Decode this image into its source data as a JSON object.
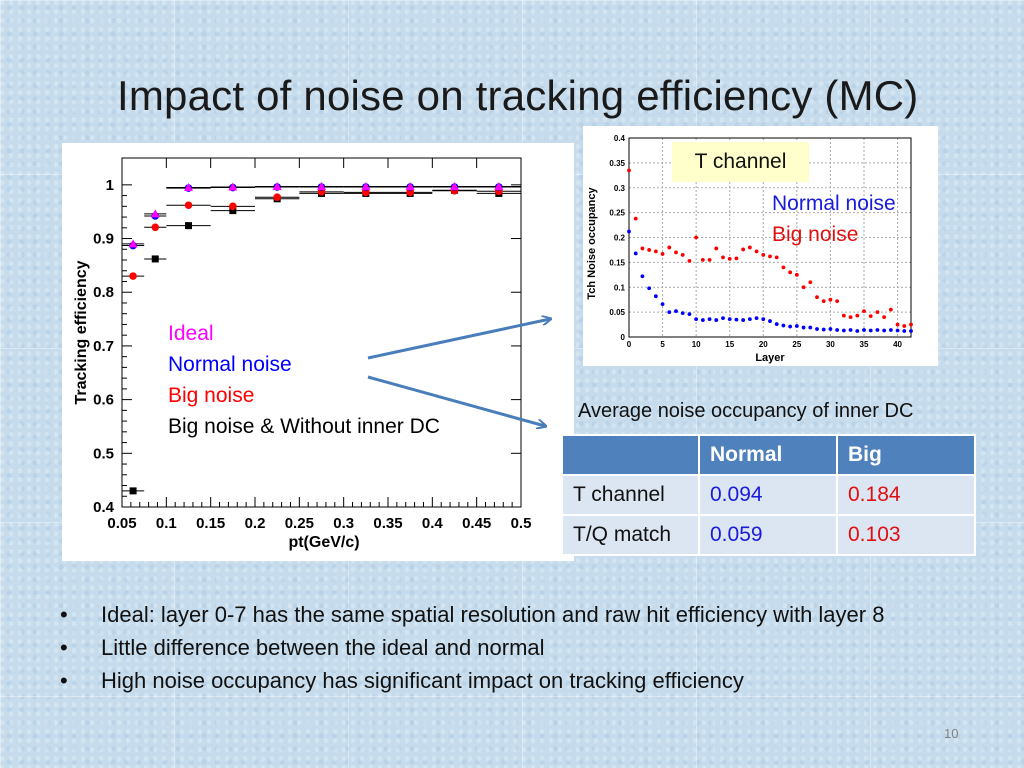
{
  "slide": {
    "title": "Impact of noise on tracking efficiency (MC)",
    "page_number": "10"
  },
  "colors": {
    "ideal": "#ff00ff",
    "normal": "#0000ff",
    "big": "#ff0000",
    "big_no_inner": "#000000",
    "table_header": "#4f81bd",
    "table_cell": "#dce6f2",
    "arrow": "#4a7ebb"
  },
  "efficiency_legend": {
    "ideal": "Ideal",
    "normal": "Normal noise",
    "big": "Big noise",
    "big_no_inner": "Big noise & Without inner DC"
  },
  "occupancy_legend": {
    "channel": "T channel",
    "normal": "Normal noise",
    "big": "Big noise"
  },
  "table": {
    "caption": "Average noise occupancy of inner DC",
    "headers": [
      "",
      "Normal",
      "Big"
    ],
    "rows": [
      {
        "label": "T channel",
        "normal": "0.094",
        "big": "0.184"
      },
      {
        "label": "T/Q match",
        "normal": "0.059",
        "big": "0.103"
      }
    ]
  },
  "bullets": [
    "Ideal: layer 0-7 has the same spatial resolution and raw hit efficiency with layer 8",
    "Little difference between the ideal and normal",
    "High noise occupancy has significant impact on tracking efficiency"
  ],
  "chart_data": [
    {
      "type": "scatter",
      "title": "",
      "xlabel": "pt(GeV/c)",
      "ylabel": "Tracking efficiency",
      "xlim": [
        0.05,
        0.5
      ],
      "ylim": [
        0.4,
        1.05
      ],
      "xticks": [
        0.05,
        0.1,
        0.15,
        0.2,
        0.25,
        0.3,
        0.35,
        0.4,
        0.45,
        0.5
      ],
      "xtick_labels": [
        "0.05",
        "0.1",
        "0.15",
        "0.2",
        "0.25",
        "0.3",
        "0.35",
        "0.4",
        "0.45",
        "0.5"
      ],
      "yticks": [
        0.4,
        0.5,
        0.6,
        0.7,
        0.8,
        0.9,
        1.0
      ],
      "ytick_labels": [
        "0.4",
        "0.5",
        "0.6",
        "0.7",
        "0.8",
        "0.9",
        "1"
      ],
      "x": [
        0.0625,
        0.0875,
        0.125,
        0.175,
        0.225,
        0.275,
        0.325,
        0.375,
        0.425,
        0.475
      ],
      "series": [
        {
          "name": "Ideal",
          "marker": "triangle",
          "values": [
            0.89,
            0.946,
            0.995,
            0.996,
            0.997,
            0.997,
            0.997,
            0.997,
            0.997,
            0.997
          ]
        },
        {
          "name": "Normal noise",
          "marker": "circle",
          "values": [
            0.887,
            0.942,
            0.994,
            0.995,
            0.996,
            0.996,
            0.996,
            0.996,
            0.996,
            0.996
          ]
        },
        {
          "name": "Big noise",
          "marker": "circle",
          "values": [
            0.83,
            0.921,
            0.962,
            0.96,
            0.977,
            0.987,
            0.986,
            0.986,
            0.989,
            0.988
          ]
        },
        {
          "name": "Big noise & Without inner DC",
          "marker": "square",
          "values": [
            0.43,
            0.862,
            0.924,
            0.952,
            0.974,
            0.984,
            0.984,
            0.984,
            0.99,
            0.984
          ]
        }
      ]
    },
    {
      "type": "scatter",
      "title": "",
      "xlabel": "Layer",
      "ylabel": "Tch Noise occupancy",
      "xlim": [
        0,
        42
      ],
      "ylim": [
        0,
        0.4
      ],
      "xticks": [
        0,
        5,
        10,
        15,
        20,
        25,
        30,
        35,
        40
      ],
      "xtick_labels": [
        "0",
        "5",
        "10",
        "15",
        "20",
        "25",
        "30",
        "35",
        "40"
      ],
      "yticks": [
        0,
        0.05,
        0.1,
        0.15,
        0.2,
        0.25,
        0.3,
        0.35,
        0.4
      ],
      "ytick_labels": [
        "0",
        "0.05",
        "0.1",
        "0.15",
        "0.2",
        "0.25",
        "0.3",
        "0.35",
        "0.4"
      ],
      "grid": true,
      "x": [
        0,
        1,
        2,
        3,
        4,
        5,
        6,
        7,
        8,
        9,
        10,
        11,
        12,
        13,
        14,
        15,
        16,
        17,
        18,
        19,
        20,
        21,
        22,
        23,
        24,
        25,
        26,
        27,
        28,
        29,
        30,
        31,
        32,
        33,
        34,
        35,
        36,
        37,
        38,
        39,
        40,
        41,
        42
      ],
      "series": [
        {
          "name": "Big noise",
          "marker": "circle",
          "values": [
            0.335,
            0.238,
            0.178,
            0.175,
            0.172,
            0.167,
            0.18,
            0.17,
            0.165,
            0.153,
            0.2,
            0.155,
            0.155,
            0.178,
            0.16,
            0.157,
            0.158,
            0.176,
            0.18,
            0.172,
            0.165,
            0.162,
            0.16,
            0.14,
            0.13,
            0.125,
            0.1,
            0.11,
            0.08,
            0.072,
            0.075,
            0.072,
            0.043,
            0.04,
            0.043,
            0.052,
            0.042,
            0.05,
            0.04,
            0.055,
            0.025,
            0.022,
            0.025
          ]
        },
        {
          "name": "Normal noise",
          "marker": "circle",
          "values": [
            0.212,
            0.168,
            0.122,
            0.098,
            0.082,
            0.066,
            0.05,
            0.052,
            0.048,
            0.046,
            0.036,
            0.034,
            0.036,
            0.034,
            0.038,
            0.036,
            0.035,
            0.034,
            0.036,
            0.038,
            0.036,
            0.032,
            0.026,
            0.023,
            0.021,
            0.022,
            0.019,
            0.019,
            0.016,
            0.015,
            0.016,
            0.014,
            0.013,
            0.014,
            0.012,
            0.014,
            0.013,
            0.014,
            0.013,
            0.014,
            0.013,
            0.012,
            0.012
          ]
        }
      ]
    }
  ]
}
